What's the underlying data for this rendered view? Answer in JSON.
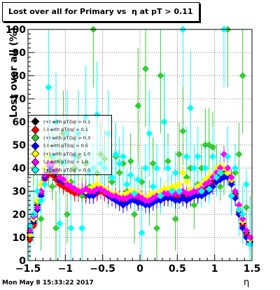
{
  "title": "Lost over all for Primary vs  η at pT > 0.11",
  "footer": {
    "datestamp": "Mon May  8 15:33:22 2017"
  },
  "chart_data": {
    "type": "scatter",
    "title": "Lost over all for Primary vs  η at pT > 0.11",
    "xlabel": "η",
    "ylabel": "Lost over all (%)",
    "xlim": [
      -1.5,
      1.5
    ],
    "ylim": [
      0,
      100
    ],
    "xticks": [
      -1.5,
      -1,
      -0.5,
      0,
      0.5,
      1,
      1.5
    ],
    "xtick_labels": [
      "−1.5",
      "−1",
      "−0.5",
      "0",
      "0.5",
      "1",
      "1.5"
    ],
    "yticks": [
      0,
      10,
      20,
      30,
      40,
      50,
      60,
      70,
      80,
      90,
      100
    ],
    "ytick_labels": [
      "0",
      "10",
      "20",
      "30",
      "40",
      "50",
      "60",
      "70",
      "80",
      "90",
      "100"
    ],
    "grid": true,
    "legend_position": "left-middle",
    "series": [
      {
        "name": "(+) with pT/|q| > 0.1",
        "color": "#000000",
        "x": [
          -1.475,
          -1.425,
          -1.375,
          -1.325,
          -1.275,
          -1.225,
          -1.175,
          -1.125,
          -1.075,
          -1.025,
          -0.975,
          -0.925,
          -0.875,
          -0.825,
          -0.775,
          -0.725,
          -0.675,
          -0.625,
          -0.575,
          -0.525,
          -0.475,
          -0.425,
          -0.375,
          -0.325,
          -0.275,
          -0.225,
          -0.175,
          -0.125,
          -0.075,
          -0.025,
          0.025,
          0.075,
          0.125,
          0.175,
          0.225,
          0.275,
          0.325,
          0.375,
          0.425,
          0.475,
          0.525,
          0.575,
          0.625,
          0.675,
          0.725,
          0.775,
          0.825,
          0.875,
          0.925,
          0.975,
          1.025,
          1.075,
          1.125,
          1.175,
          1.225,
          1.275,
          1.325,
          1.375,
          1.425,
          1.475
        ],
        "y": [
          10,
          16,
          24,
          30,
          36,
          38,
          38,
          36,
          34,
          33,
          32,
          31,
          30,
          30,
          29,
          29,
          29,
          30,
          30,
          31,
          30,
          29,
          28,
          28,
          27,
          27,
          27,
          28,
          28,
          27,
          27,
          26,
          26,
          27,
          27,
          28,
          28,
          29,
          29,
          28,
          28,
          28,
          28,
          28,
          29,
          29,
          30,
          31,
          32,
          34,
          36,
          37,
          38,
          38,
          35,
          29,
          22,
          16,
          12,
          9
        ]
      },
      {
        "name": "(-) with pT/|q| > 0.1",
        "color": "#ff0000",
        "x": [
          -1.475,
          -1.425,
          -1.375,
          -1.325,
          -1.275,
          -1.225,
          -1.175,
          -1.125,
          -1.075,
          -1.025,
          -0.975,
          -0.925,
          -0.875,
          -0.825,
          -0.775,
          -0.725,
          -0.675,
          -0.625,
          -0.575,
          -0.525,
          -0.475,
          -0.425,
          -0.375,
          -0.325,
          -0.275,
          -0.225,
          -0.175,
          -0.125,
          -0.075,
          -0.025,
          0.025,
          0.075,
          0.125,
          0.175,
          0.225,
          0.275,
          0.325,
          0.375,
          0.425,
          0.475,
          0.525,
          0.575,
          0.625,
          0.675,
          0.725,
          0.775,
          0.825,
          0.875,
          0.925,
          0.975,
          1.025,
          1.075,
          1.125,
          1.175,
          1.225,
          1.275,
          1.325,
          1.375,
          1.425,
          1.475
        ],
        "y": [
          9,
          15,
          23,
          29,
          35,
          37,
          37,
          35,
          33,
          32,
          31,
          30,
          29,
          29,
          28,
          28,
          28,
          29,
          29,
          30,
          29,
          28,
          27,
          27,
          26,
          26,
          26,
          27,
          27,
          26,
          26,
          25,
          25,
          26,
          26,
          27,
          27,
          28,
          28,
          27,
          27,
          27,
          27,
          27,
          28,
          28,
          29,
          30,
          31,
          33,
          35,
          36,
          37,
          37,
          34,
          28,
          21,
          15,
          11,
          8
        ]
      },
      {
        "name": "(+) with pT/|q| > 0.3",
        "color": "#33cc33",
        "x": [
          -1.475,
          -1.425,
          -1.375,
          -1.325,
          -1.275,
          -1.225,
          -1.175,
          -1.125,
          -1.075,
          -1.025,
          -0.975,
          -0.925,
          -0.875,
          -0.825,
          -0.775,
          -0.725,
          -0.675,
          -0.625,
          -0.575,
          -0.525,
          -0.475,
          -0.425,
          -0.375,
          -0.325,
          -0.275,
          -0.225,
          -0.175,
          -0.125,
          -0.075,
          -0.025,
          0.025,
          0.075,
          0.125,
          0.175,
          0.225,
          0.275,
          0.325,
          0.375,
          0.425,
          0.475,
          0.525,
          0.575,
          0.625,
          0.675,
          0.725,
          0.775,
          0.825,
          0.875,
          0.925,
          0.975,
          1.025,
          1.075,
          1.125,
          1.175,
          1.225,
          1.275,
          1.325,
          1.375,
          1.425,
          1.475
        ],
        "y": [
          14,
          40,
          25,
          18,
          40,
          45,
          32,
          14,
          43,
          55,
          20,
          34,
          40,
          45,
          28,
          42,
          32,
          100,
          38,
          46,
          44,
          30,
          34,
          45,
          38,
          42,
          30,
          43,
          20,
          67,
          34,
          83,
          25,
          42,
          14,
          80,
          60,
          43,
          31,
          18,
          46,
          56,
          36,
          40,
          24,
          33,
          40,
          50,
          50,
          49,
          40,
          32,
          37,
          100,
          28,
          38,
          46,
          80,
          23,
          10
        ]
      },
      {
        "name": "(-) with pT/|q| > 0.5",
        "color": "#0000ff",
        "x": [
          -1.475,
          -1.425,
          -1.375,
          -1.325,
          -1.275,
          -1.225,
          -1.175,
          -1.125,
          -1.075,
          -1.025,
          -0.975,
          -0.925,
          -0.875,
          -0.825,
          -0.775,
          -0.725,
          -0.675,
          -0.625,
          -0.575,
          -0.525,
          -0.475,
          -0.425,
          -0.375,
          -0.325,
          -0.275,
          -0.225,
          -0.175,
          -0.125,
          -0.075,
          -0.025,
          0.025,
          0.075,
          0.125,
          0.175,
          0.225,
          0.275,
          0.325,
          0.375,
          0.425,
          0.475,
          0.525,
          0.575,
          0.625,
          0.675,
          0.725,
          0.775,
          0.825,
          0.875,
          0.925,
          0.975,
          1.025,
          1.075,
          1.125,
          1.175,
          1.225,
          1.275,
          1.325,
          1.375,
          1.425,
          1.475
        ],
        "y": [
          12,
          17,
          22,
          28,
          36,
          40,
          40,
          38,
          35,
          34,
          33,
          32,
          31,
          30,
          30,
          29,
          28,
          28,
          30,
          31,
          30,
          28,
          27,
          26,
          25,
          24,
          25,
          26,
          26,
          25,
          25,
          24,
          24,
          25,
          26,
          26,
          27,
          27,
          27,
          26,
          26,
          27,
          26,
          27,
          28,
          28,
          28,
          29,
          30,
          32,
          34,
          35,
          36,
          36,
          33,
          27,
          20,
          14,
          10,
          8
        ]
      },
      {
        "name": "(+) with pT/|q| > 1.0",
        "color": "#ffff00",
        "x": [
          -1.475,
          -1.425,
          -1.375,
          -1.325,
          -1.275,
          -1.225,
          -1.175,
          -1.125,
          -1.075,
          -1.025,
          -0.975,
          -0.925,
          -0.875,
          -0.825,
          -0.775,
          -0.725,
          -0.675,
          -0.625,
          -0.575,
          -0.525,
          -0.475,
          -0.425,
          -0.375,
          -0.325,
          -0.275,
          -0.225,
          -0.175,
          -0.125,
          -0.075,
          -0.025,
          0.025,
          0.075,
          0.125,
          0.175,
          0.225,
          0.275,
          0.325,
          0.375,
          0.425,
          0.475,
          0.525,
          0.575,
          0.625,
          0.675,
          0.725,
          0.775,
          0.825,
          0.875,
          0.925,
          0.975,
          1.025,
          1.075,
          1.125,
          1.175,
          1.225,
          1.275,
          1.325,
          1.375,
          1.425,
          1.475
        ],
        "y": [
          11,
          18,
          26,
          33,
          40,
          45,
          44,
          40,
          37,
          35,
          34,
          32,
          31,
          31,
          30,
          30,
          31,
          32,
          33,
          32,
          31,
          30,
          29,
          29,
          28,
          28,
          29,
          30,
          30,
          29,
          28,
          27,
          28,
          29,
          29,
          30,
          31,
          31,
          32,
          32,
          33,
          38,
          34,
          31,
          30,
          32,
          33,
          35,
          36,
          37,
          40,
          41,
          40,
          38,
          35,
          30,
          23,
          17,
          13,
          9
        ]
      },
      {
        "name": "(-) with pT/|q| > 1.0",
        "color": "#ff00ff",
        "x": [
          -1.475,
          -1.425,
          -1.375,
          -1.325,
          -1.275,
          -1.225,
          -1.175,
          -1.125,
          -1.075,
          -1.025,
          -0.975,
          -0.925,
          -0.875,
          -0.825,
          -0.775,
          -0.725,
          -0.675,
          -0.625,
          -0.575,
          -0.525,
          -0.475,
          -0.425,
          -0.375,
          -0.325,
          -0.275,
          -0.225,
          -0.175,
          -0.125,
          -0.075,
          -0.025,
          0.025,
          0.075,
          0.125,
          0.175,
          0.225,
          0.275,
          0.325,
          0.375,
          0.425,
          0.475,
          0.525,
          0.575,
          0.625,
          0.675,
          0.725,
          0.775,
          0.825,
          0.875,
          0.925,
          0.975,
          1.025,
          1.075,
          1.125,
          1.175,
          1.225,
          1.275,
          1.325,
          1.375,
          1.425,
          1.475
        ],
        "y": [
          13,
          19,
          23,
          30,
          37,
          42,
          42,
          39,
          36,
          35,
          33,
          32,
          31,
          30,
          30,
          31,
          30,
          30,
          31,
          31,
          30,
          29,
          28,
          28,
          27,
          27,
          27,
          28,
          28,
          28,
          27,
          26,
          26,
          27,
          28,
          28,
          29,
          29,
          29,
          29,
          29,
          30,
          29,
          29,
          30,
          30,
          31,
          33,
          34,
          36,
          38,
          40,
          46,
          40,
          36,
          30,
          24,
          18,
          13,
          10
        ]
      },
      {
        "name": "(+) with pT/|q| > 0.0",
        "color": "#00ffff",
        "x": [
          -1.475,
          -1.425,
          -1.375,
          -1.325,
          -1.275,
          -1.225,
          -1.175,
          -1.125,
          -1.075,
          -1.025,
          -0.975,
          -0.925,
          -0.875,
          -0.825,
          -0.775,
          -0.725,
          -0.675,
          -0.625,
          -0.575,
          -0.525,
          -0.475,
          -0.425,
          -0.375,
          -0.325,
          -0.275,
          -0.225,
          -0.175,
          -0.125,
          -0.075,
          -0.025,
          0.025,
          0.075,
          0.125,
          0.175,
          0.225,
          0.275,
          0.325,
          0.375,
          0.425,
          0.475,
          0.525,
          0.575,
          0.625,
          0.675,
          0.725,
          0.775,
          0.825,
          0.875,
          0.925,
          0.975,
          1.025,
          1.075,
          1.125,
          1.175,
          1.225,
          1.275,
          1.325,
          1.375,
          1.425,
          1.475
        ],
        "y": [
          15,
          20,
          30,
          26,
          33,
          75,
          45,
          60,
          16,
          42,
          55,
          14,
          45,
          55,
          14,
          62,
          38,
          40,
          63,
          42,
          40,
          55,
          36,
          46,
          42,
          45,
          33,
          37,
          29,
          35,
          12,
          40,
          55,
          32,
          40,
          28,
          60,
          40,
          30,
          38,
          30,
          100,
          45,
          66,
          40,
          45,
          30,
          40,
          31,
          45,
          36,
          38,
          100,
          45,
          28,
          40,
          22,
          20,
          33,
          7
        ]
      }
    ]
  }
}
